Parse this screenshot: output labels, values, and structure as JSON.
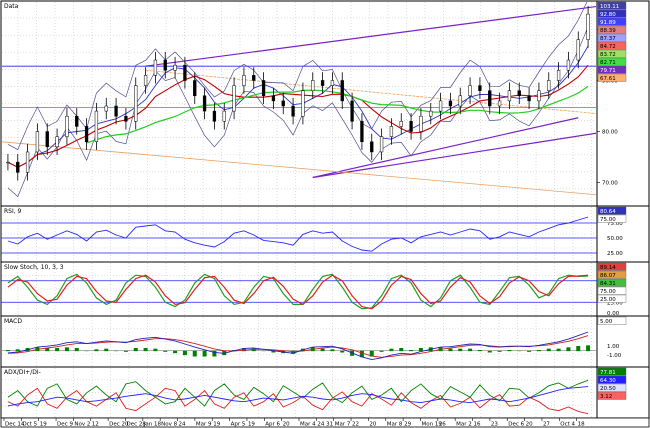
{
  "colors": {
    "price": "#000000",
    "ma_short": "#3030c0",
    "ma_long": "#c00000",
    "ma_200": "#22cc22",
    "bollinger": "#505090",
    "channel": "#7a20c8",
    "fib_orange": "#e8a060",
    "hline_blue": "#2020ff",
    "hline_red": "#ff4040",
    "rsi": "#2828ff",
    "stoch_k": "#20a020",
    "stoch_d": "#e02020",
    "stoch_slow": "#d06000",
    "macd_line": "#2020c0",
    "macd_signal": "#d02020",
    "macd_hist": "#008000",
    "adx_pos": "#008000",
    "adx_neg": "#e02020",
    "adx": "#2020ff",
    "grid": "#c8c8c8",
    "panel_border": "#000000"
  },
  "chart_data": [
    {
      "type": "candlestick",
      "title": "Data",
      "y_right_ticks": [
        "100.00",
        "90.00",
        "80.00",
        "70.00"
      ],
      "price_tags": [
        {
          "text": "103.11",
          "fg": "#ffffff",
          "bg": "#4040a0"
        },
        {
          "text": "92.80",
          "fg": "#ffffff",
          "bg": "#3030c0"
        },
        {
          "text": "91.89",
          "fg": "#ffffff",
          "bg": "#4040ff"
        },
        {
          "text": "88.39",
          "fg": "#000000",
          "bg": "#e08080"
        },
        {
          "text": "87.37",
          "fg": "#000000",
          "bg": "#a0a0ff"
        },
        {
          "text": "84.72",
          "fg": "#000000",
          "bg": "#ff6060"
        },
        {
          "text": "83.72",
          "fg": "#000000",
          "bg": "#a0e060"
        },
        {
          "text": "82.71",
          "fg": "#000000",
          "bg": "#40e040"
        },
        {
          "text": "79.71",
          "fg": "#ffffff",
          "bg": "#7030c0"
        },
        {
          "text": "67.61",
          "fg": "#000000",
          "bg": "#ffb070"
        }
      ],
      "close_series": [
        74,
        72,
        76,
        80,
        77,
        79,
        83,
        81,
        78,
        84,
        85,
        83,
        82,
        89,
        91,
        94,
        92,
        93,
        90,
        87,
        84,
        82,
        84,
        89,
        91,
        90,
        87,
        86,
        85,
        83,
        88,
        90,
        89,
        90,
        86,
        82,
        78,
        76,
        79,
        81,
        82,
        80,
        83,
        84,
        86,
        85,
        87,
        89,
        88,
        85,
        86,
        88,
        87,
        86,
        88,
        90,
        92,
        94,
        98,
        103
      ],
      "y_range": [
        66,
        104
      ]
    },
    {
      "type": "line",
      "title": "RSI, 9",
      "y_right_ticks": [
        "75.00",
        "50.00",
        "25.00"
      ],
      "price_tags": [
        {
          "text": "80.64",
          "fg": "#ffffff",
          "bg": "#3030c0"
        },
        {
          "text": "75.00",
          "fg": "#000000",
          "bg": "#ffffff"
        }
      ],
      "y_range": [
        15,
        90
      ],
      "series": [
        {
          "values": [
            45,
            40,
            52,
            58,
            48,
            55,
            62,
            56,
            45,
            60,
            63,
            55,
            50,
            68,
            70,
            72,
            62,
            60,
            48,
            42,
            38,
            35,
            44,
            58,
            62,
            55,
            46,
            44,
            42,
            38,
            56,
            62,
            58,
            60,
            45,
            36,
            30,
            28,
            40,
            48,
            50,
            42,
            52,
            56,
            60,
            55,
            60,
            65,
            62,
            48,
            52,
            60,
            56,
            52,
            60,
            66,
            72,
            75,
            80,
            85
          ]
        }
      ]
    },
    {
      "type": "line",
      "title": "Slow Stoch, 10, 3, 3",
      "y_right_ticks": [
        "75.00",
        "50.00",
        "25.00",
        "0.00"
      ],
      "price_tags": [
        {
          "text": "89.14",
          "fg": "#000000",
          "bg": "#e04040"
        },
        {
          "text": "86.07",
          "fg": "#000000",
          "bg": "#e0a040"
        },
        {
          "text": "84.31",
          "fg": "#000000",
          "bg": "#40c040"
        },
        {
          "text": "75.00",
          "fg": "#000000",
          "bg": "#ffffff"
        },
        {
          "text": "25.00",
          "fg": "#000000",
          "bg": "#ffffff"
        }
      ],
      "y_range": [
        0,
        100
      ],
      "series": [
        {
          "values": [
            70,
            85,
            60,
            30,
            20,
            40,
            80,
            90,
            70,
            35,
            20,
            30,
            70,
            88,
            85,
            60,
            25,
            15,
            30,
            70,
            90,
            80,
            40,
            20,
            25,
            60,
            85,
            80,
            45,
            20,
            20,
            55,
            85,
            90,
            60,
            25,
            10,
            12,
            40,
            80,
            88,
            70,
            30,
            15,
            35,
            75,
            88,
            60,
            25,
            20,
            50,
            82,
            85,
            65,
            35,
            45,
            80,
            88,
            85,
            86
          ]
        },
        {
          "values": [
            60,
            78,
            72,
            45,
            28,
            32,
            65,
            85,
            80,
            50,
            28,
            25,
            55,
            80,
            88,
            72,
            40,
            20,
            24,
            55,
            82,
            85,
            60,
            30,
            22,
            45,
            75,
            83,
            62,
            32,
            20,
            40,
            72,
            88,
            75,
            40,
            15,
            10,
            28,
            65,
            85,
            78,
            45,
            22,
            28,
            60,
            82,
            72,
            40,
            22,
            38,
            70,
            84,
            75,
            50,
            40,
            68,
            85,
            86,
            88
          ]
        }
      ]
    },
    {
      "type": "line",
      "title": "MACD",
      "y_right_ticks": [
        "1.00",
        "-1.00"
      ],
      "price_tags": [
        {
          "text": "5.00",
          "fg": "#000000",
          "bg": "#ffffff"
        }
      ],
      "y_range": [
        -3,
        6
      ],
      "series": [
        {
          "values": [
            -0.5,
            -0.3,
            0.2,
            0.8,
            1.0,
            1.3,
            1.8,
            2.0,
            1.6,
            1.9,
            2.2,
            2.0,
            1.8,
            2.5,
            2.8,
            3.0,
            2.6,
            2.2,
            1.5,
            0.8,
            0.2,
            -0.4,
            -0.6,
            0.0,
            0.5,
            0.6,
            0.3,
            0.0,
            -0.3,
            -0.6,
            0.2,
            0.8,
            0.9,
            1.0,
            0.4,
            -0.5,
            -1.4,
            -2.0,
            -1.6,
            -1.0,
            -0.6,
            -0.8,
            -0.2,
            0.3,
            0.8,
            0.9,
            1.2,
            1.5,
            1.4,
            0.9,
            0.8,
            1.0,
            1.0,
            0.9,
            1.2,
            1.6,
            2.0,
            2.6,
            3.4,
            4.2
          ]
        },
        {
          "values": [
            -0.6,
            -0.5,
            -0.2,
            0.3,
            0.6,
            0.9,
            1.3,
            1.6,
            1.6,
            1.7,
            1.9,
            2.0,
            1.9,
            2.1,
            2.4,
            2.7,
            2.7,
            2.5,
            2.1,
            1.6,
            1.0,
            0.4,
            0.0,
            -0.1,
            0.1,
            0.3,
            0.3,
            0.2,
            0.0,
            -0.2,
            -0.1,
            0.3,
            0.6,
            0.8,
            0.6,
            0.2,
            -0.5,
            -1.2,
            -1.5,
            -1.3,
            -1.0,
            -0.9,
            -0.6,
            -0.2,
            0.3,
            0.6,
            0.9,
            1.2,
            1.3,
            1.1,
            0.9,
            0.9,
            1.0,
            1.0,
            1.1,
            1.3,
            1.7,
            2.1,
            2.7,
            3.4
          ]
        }
      ]
    },
    {
      "type": "line",
      "title": "ADX/DI+/DI-",
      "y_right_ticks": [],
      "price_tags": [
        {
          "text": "77.81",
          "fg": "#ffffff",
          "bg": "#008000"
        },
        {
          "text": "64.30",
          "fg": "#ffffff",
          "bg": "#2020ff"
        },
        {
          "text": "20.50",
          "fg": "#000000",
          "bg": "#e0e0ff"
        },
        {
          "text": "3.12",
          "fg": "#000000",
          "bg": "#ff6060"
        }
      ],
      "y_range": [
        0,
        90
      ],
      "series": [
        {
          "values": [
            40,
            55,
            30,
            20,
            60,
            70,
            35,
            25,
            50,
            65,
            45,
            30,
            70,
            75,
            55,
            40,
            25,
            30,
            60,
            40,
            20,
            55,
            70,
            45,
            35,
            62,
            48,
            30,
            66,
            52,
            38,
            58,
            72,
            40,
            28,
            50,
            65,
            35,
            45,
            60,
            30,
            55,
            70,
            48,
            36,
            64,
            52,
            40,
            68,
            44,
            32,
            60,
            58,
            38,
            50,
            66,
            72,
            60,
            70,
            78
          ]
        },
        {
          "values": [
            30,
            20,
            45,
            60,
            25,
            15,
            40,
            55,
            30,
            20,
            35,
            50,
            15,
            10,
            25,
            40,
            60,
            55,
            20,
            35,
            55,
            25,
            15,
            40,
            50,
            20,
            30,
            48,
            18,
            28,
            42,
            22,
            12,
            38,
            52,
            30,
            20,
            48,
            36,
            22,
            50,
            28,
            15,
            32,
            44,
            18,
            26,
            40,
            16,
            34,
            46,
            20,
            22,
            40,
            30,
            14,
            10,
            18,
            8,
            3
          ]
        },
        {
          "values": [
            20,
            25,
            28,
            30,
            35,
            40,
            38,
            34,
            30,
            32,
            35,
            38,
            42,
            45,
            48,
            44,
            38,
            34,
            36,
            40,
            44,
            40,
            36,
            32,
            30,
            34,
            38,
            36,
            34,
            38,
            42,
            40,
            36,
            34,
            38,
            44,
            48,
            46,
            40,
            36,
            34,
            30,
            28,
            32,
            36,
            34,
            30,
            28,
            32,
            36,
            34,
            30,
            34,
            38,
            44,
            50,
            56,
            60,
            62,
            64
          ]
        }
      ]
    }
  ],
  "x_axis": {
    "ticks": [
      "Dec 14",
      "Oct 5",
      "19",
      "Dec 9",
      "Nov 2",
      "12",
      "Dec 20",
      "Dec 28",
      "Jan 18",
      "Nov 8",
      "24",
      "Mar 9",
      "19",
      "Apr 5",
      "19",
      "Apr 6",
      "20",
      "Mar 4",
      "24 31",
      "Mar 7",
      "22",
      "20",
      "Mar 8",
      "29",
      "Mon 19",
      "26",
      "Mar 2",
      "16",
      "23",
      "Dec 6",
      "20",
      "27",
      "Oct 4",
      "18"
    ]
  }
}
